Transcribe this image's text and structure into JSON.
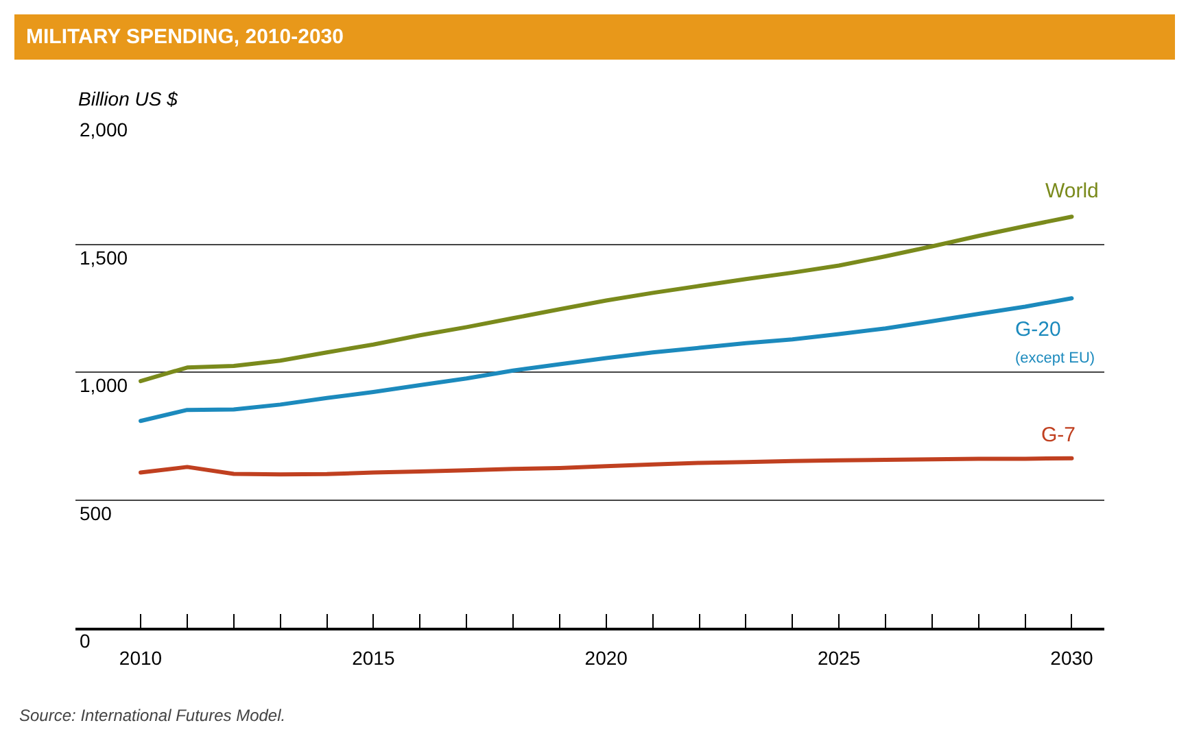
{
  "chart_data": {
    "type": "line",
    "title": "MILITARY SPENDING, 2010-2030",
    "ylabel": "Billion US $",
    "x": [
      2010,
      2011,
      2012,
      2013,
      2014,
      2015,
      2016,
      2017,
      2018,
      2019,
      2020,
      2021,
      2022,
      2023,
      2024,
      2025,
      2026,
      2027,
      2028,
      2029,
      2030
    ],
    "series": [
      {
        "name": "World",
        "color": "#7a8a1c",
        "values": [
          965,
          1018,
          1024,
          1045,
          1077,
          1108,
          1144,
          1176,
          1211,
          1246,
          1280,
          1310,
          1337,
          1364,
          1389,
          1417,
          1453,
          1492,
          1533,
          1571,
          1608
        ]
      },
      {
        "name": "G-20\n(except EU)",
        "color": "#1c8abd",
        "values": [
          809,
          852,
          854,
          873,
          899,
          922,
          949,
          975,
          1006,
          1031,
          1055,
          1077,
          1095,
          1113,
          1128,
          1149,
          1171,
          1199,
          1228,
          1256,
          1289
        ]
      },
      {
        "name": "G-7",
        "color": "#c04020",
        "values": [
          607,
          629,
          602,
          600,
          601,
          607,
          611,
          616,
          621,
          625,
          632,
          639,
          645,
          648,
          652,
          655,
          657,
          659,
          661,
          661,
          663
        ]
      }
    ],
    "xlim": [
      2008.6,
      2030.7
    ],
    "ylim": [
      0,
      2000
    ],
    "xticks": [
      2010,
      {
        "value": 2011,
        "label": null
      },
      {
        "value": 2012,
        "label": null
      },
      {
        "value": 2013,
        "label": null
      },
      {
        "value": 2014,
        "label": null
      },
      2015,
      {
        "value": 2016,
        "label": null
      },
      {
        "value": 2017,
        "label": null
      },
      {
        "value": 2018,
        "label": null
      },
      {
        "value": 2019,
        "label": null
      },
      2020,
      {
        "value": 2021,
        "label": null
      },
      {
        "value": 2022,
        "label": null
      },
      {
        "value": 2023,
        "label": null
      },
      {
        "value": 2024,
        "label": null
      },
      2025,
      {
        "value": 2026,
        "label": null
      },
      {
        "value": 2027,
        "label": null
      },
      {
        "value": 2028,
        "label": null
      },
      {
        "value": 2029,
        "label": null
      },
      2030
    ],
    "yticks": [
      0,
      500,
      {
        "value": 1000,
        "label": "1,000"
      },
      {
        "value": 1500,
        "label": "1,500"
      },
      {
        "value": 2000,
        "label": "2,000"
      }
    ],
    "grid": "y",
    "legend": false,
    "annotations": [
      "Source: International Futures Model."
    ]
  }
}
